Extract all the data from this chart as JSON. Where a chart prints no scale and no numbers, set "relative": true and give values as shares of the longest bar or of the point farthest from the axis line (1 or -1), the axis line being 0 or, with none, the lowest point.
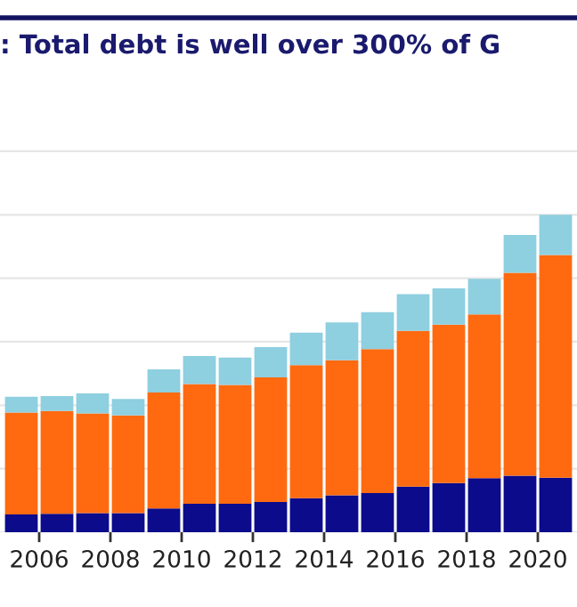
{
  "chart_data": {
    "type": "bar",
    "title": ": Total debt is well over 300% of G",
    "stacked": true,
    "relative": true,
    "grid": "y",
    "x": [
      2005.5,
      2006.5,
      2007.5,
      2008.5,
      2009.5,
      2010.5,
      2011.5,
      2012.5,
      2013.5,
      2014.5,
      2015.5,
      2016.5,
      2017.5,
      2018.5,
      2019.5,
      2020.5
    ],
    "xlim": [
      2004.9,
      2021.1
    ],
    "xticks": [
      2006,
      2008,
      2010,
      2012,
      2014,
      2016,
      2018,
      2020
    ],
    "series": [
      {
        "color": "#0b0b8c",
        "values": [
          0.056,
          0.058,
          0.06,
          0.06,
          0.075,
          0.09,
          0.09,
          0.095,
          0.107,
          0.116,
          0.123,
          0.144,
          0.155,
          0.17,
          0.178,
          0.172
        ]
      },
      {
        "color": "#ff6a10",
        "values": [
          0.321,
          0.324,
          0.314,
          0.308,
          0.365,
          0.377,
          0.374,
          0.393,
          0.419,
          0.426,
          0.454,
          0.49,
          0.499,
          0.516,
          0.639,
          0.701
        ]
      },
      {
        "color": "#8ecfe0",
        "values": [
          0.05,
          0.047,
          0.063,
          0.052,
          0.073,
          0.088,
          0.086,
          0.095,
          0.103,
          0.119,
          0.116,
          0.116,
          0.114,
          0.112,
          0.119,
          0.127
        ]
      }
    ]
  }
}
